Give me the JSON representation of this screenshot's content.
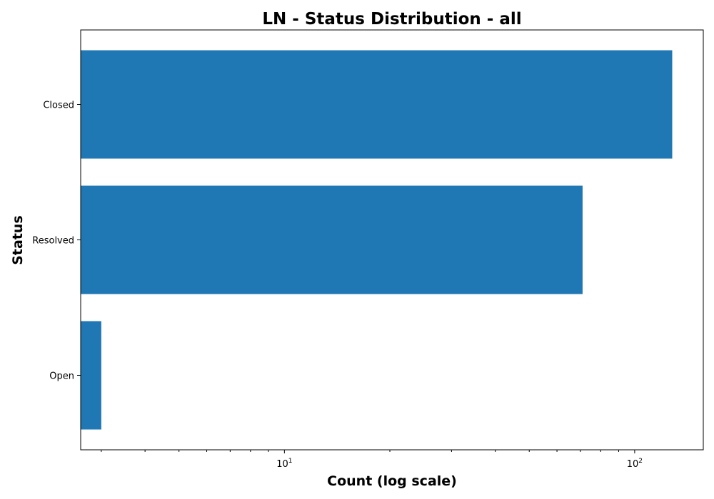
{
  "chart_data": {
    "type": "bar",
    "orientation": "horizontal",
    "title": "LN - Status Distribution - all",
    "xlabel": "Count (log scale)",
    "ylabel": "Status",
    "x_scale": "log",
    "xlim": [
      2.62,
      157
    ],
    "x_major_ticks": [
      {
        "base": "10",
        "exp": "1",
        "value": 10
      },
      {
        "base": "10",
        "exp": "2",
        "value": 100
      }
    ],
    "categories": [
      "Closed",
      "Resolved",
      "Open"
    ],
    "values": [
      128,
      71,
      3
    ],
    "bar_color": "#1f77b4",
    "grid": false,
    "legend": "none"
  }
}
